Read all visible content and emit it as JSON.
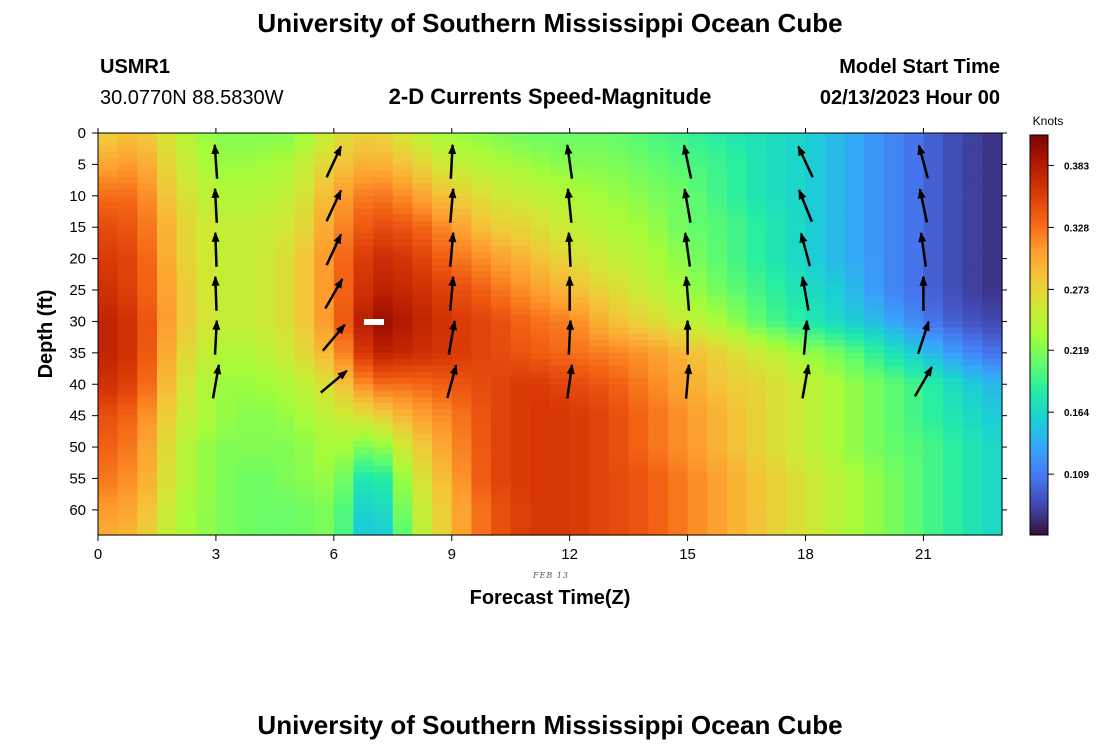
{
  "header": {
    "title": "University of Southern Mississippi Ocean Cube",
    "station": "USMR1",
    "coords": "30.0770N  88.5830W",
    "subtitle": "2-D Currents Speed-Magnitude",
    "model_start_label": "Model Start Time",
    "model_start_value": "02/13/2023 Hour 00"
  },
  "footer": {
    "title": "University of Southern Mississippi Ocean Cube"
  },
  "chart_data": {
    "type": "heatmap",
    "xlabel": "Forecast Time(Z)",
    "ylabel": "Depth (ft)",
    "date_label": "FEB 13",
    "xlim": [
      0,
      23
    ],
    "ylim": [
      0,
      64
    ],
    "y_inverted": true,
    "x_ticks": [
      0,
      3,
      6,
      9,
      12,
      15,
      18,
      21
    ],
    "y_ticks": [
      0,
      5,
      10,
      15,
      20,
      25,
      30,
      35,
      40,
      45,
      50,
      55,
      60
    ],
    "colorbar": {
      "label": "Knots",
      "ticks": [
        "0.109",
        "0.164",
        "0.219",
        "0.273",
        "0.328",
        "0.383"
      ],
      "tick_values": [
        0.109,
        0.164,
        0.219,
        0.273,
        0.328,
        0.383
      ],
      "range": [
        0.055,
        0.41
      ],
      "colors": [
        "#30123b",
        "#4145ab",
        "#4675ed",
        "#39a2fc",
        "#1bcfd4",
        "#24eca6",
        "#61fc6c",
        "#a4fc3b",
        "#d1e834",
        "#f3c63a",
        "#fe9b2d",
        "#f36315",
        "#d93806",
        "#b11901",
        "#7a0403"
      ]
    },
    "speed_grid": {
      "times": [
        0,
        1,
        2,
        3,
        4,
        5,
        6,
        7,
        8,
        9,
        10,
        11,
        12,
        13,
        14,
        15,
        16,
        17,
        18,
        19,
        20,
        21,
        22,
        23
      ],
      "depths": [
        0,
        5,
        10,
        15,
        20,
        25,
        30,
        35,
        40,
        45,
        50,
        55,
        60,
        64
      ],
      "values": [
        [
          0.27,
          0.29,
          0.25,
          0.22,
          0.22,
          0.22,
          0.26,
          0.28,
          0.25,
          0.23,
          0.22,
          0.21,
          0.21,
          0.21,
          0.2,
          0.19,
          0.18,
          0.17,
          0.16,
          0.14,
          0.12,
          0.1,
          0.08,
          0.07
        ],
        [
          0.3,
          0.31,
          0.26,
          0.23,
          0.23,
          0.24,
          0.28,
          0.3,
          0.28,
          0.25,
          0.24,
          0.23,
          0.22,
          0.22,
          0.21,
          0.2,
          0.19,
          0.17,
          0.16,
          0.14,
          0.12,
          0.1,
          0.08,
          0.07
        ],
        [
          0.33,
          0.33,
          0.27,
          0.24,
          0.24,
          0.25,
          0.3,
          0.33,
          0.31,
          0.28,
          0.26,
          0.25,
          0.24,
          0.23,
          0.22,
          0.21,
          0.19,
          0.17,
          0.16,
          0.14,
          0.12,
          0.1,
          0.08,
          0.07
        ],
        [
          0.35,
          0.34,
          0.28,
          0.25,
          0.25,
          0.26,
          0.31,
          0.35,
          0.34,
          0.31,
          0.28,
          0.27,
          0.25,
          0.24,
          0.23,
          0.21,
          0.2,
          0.18,
          0.16,
          0.14,
          0.12,
          0.1,
          0.08,
          0.07
        ],
        [
          0.36,
          0.35,
          0.28,
          0.25,
          0.25,
          0.27,
          0.32,
          0.37,
          0.36,
          0.33,
          0.31,
          0.29,
          0.27,
          0.25,
          0.24,
          0.22,
          0.2,
          0.18,
          0.16,
          0.14,
          0.12,
          0.1,
          0.08,
          0.07
        ],
        [
          0.37,
          0.35,
          0.29,
          0.25,
          0.25,
          0.27,
          0.32,
          0.38,
          0.37,
          0.35,
          0.33,
          0.31,
          0.29,
          0.27,
          0.25,
          0.23,
          0.21,
          0.19,
          0.17,
          0.15,
          0.12,
          0.1,
          0.08,
          0.07
        ],
        [
          0.38,
          0.36,
          0.29,
          0.25,
          0.25,
          0.27,
          0.32,
          0.4,
          0.38,
          0.36,
          0.35,
          0.33,
          0.32,
          0.29,
          0.27,
          0.25,
          0.23,
          0.2,
          0.18,
          0.16,
          0.14,
          0.11,
          0.09,
          0.08
        ],
        [
          0.38,
          0.36,
          0.28,
          0.24,
          0.24,
          0.26,
          0.3,
          0.38,
          0.37,
          0.36,
          0.35,
          0.34,
          0.33,
          0.32,
          0.31,
          0.29,
          0.27,
          0.25,
          0.23,
          0.21,
          0.18,
          0.15,
          0.12,
          0.1
        ],
        [
          0.37,
          0.35,
          0.27,
          0.23,
          0.23,
          0.24,
          0.27,
          0.33,
          0.33,
          0.34,
          0.35,
          0.36,
          0.35,
          0.34,
          0.32,
          0.3,
          0.28,
          0.27,
          0.25,
          0.23,
          0.21,
          0.19,
          0.16,
          0.14
        ],
        [
          0.35,
          0.33,
          0.26,
          0.23,
          0.22,
          0.23,
          0.25,
          0.27,
          0.3,
          0.32,
          0.35,
          0.36,
          0.36,
          0.35,
          0.33,
          0.31,
          0.29,
          0.27,
          0.25,
          0.23,
          0.21,
          0.19,
          0.17,
          0.15
        ],
        [
          0.34,
          0.32,
          0.25,
          0.22,
          0.22,
          0.22,
          0.24,
          0.21,
          0.27,
          0.31,
          0.35,
          0.36,
          0.36,
          0.35,
          0.33,
          0.31,
          0.29,
          0.27,
          0.25,
          0.23,
          0.21,
          0.2,
          0.18,
          0.16
        ],
        [
          0.33,
          0.31,
          0.25,
          0.22,
          0.21,
          0.22,
          0.23,
          0.16,
          0.25,
          0.3,
          0.35,
          0.36,
          0.36,
          0.35,
          0.34,
          0.32,
          0.3,
          0.28,
          0.26,
          0.24,
          0.22,
          0.2,
          0.18,
          0.16
        ],
        [
          0.31,
          0.3,
          0.24,
          0.22,
          0.21,
          0.21,
          0.22,
          0.14,
          0.24,
          0.29,
          0.34,
          0.36,
          0.36,
          0.35,
          0.34,
          0.32,
          0.3,
          0.28,
          0.26,
          0.24,
          0.22,
          0.2,
          0.18,
          0.16
        ],
        [
          0.3,
          0.29,
          0.24,
          0.22,
          0.21,
          0.21,
          0.22,
          0.13,
          0.23,
          0.29,
          0.34,
          0.36,
          0.36,
          0.35,
          0.34,
          0.32,
          0.3,
          0.28,
          0.26,
          0.24,
          0.22,
          0.2,
          0.18,
          0.16
        ]
      ]
    },
    "vectors": [
      {
        "time": 3,
        "depths": [
          3,
          10,
          17,
          24,
          31,
          38
        ],
        "angles_deg": [
          -4,
          -3,
          -2,
          -2,
          3,
          10
        ]
      },
      {
        "time": 6,
        "depths": [
          3,
          10,
          17,
          24,
          31,
          38
        ],
        "angles_deg": [
          25,
          25,
          25,
          30,
          40,
          50
        ]
      },
      {
        "time": 9,
        "depths": [
          3,
          10,
          17,
          24,
          31,
          38
        ],
        "angles_deg": [
          3,
          5,
          5,
          5,
          10,
          15
        ]
      },
      {
        "time": 12,
        "depths": [
          3,
          10,
          17,
          24,
          31,
          38
        ],
        "angles_deg": [
          -8,
          -6,
          -3,
          0,
          3,
          8
        ]
      },
      {
        "time": 15,
        "depths": [
          3,
          10,
          17,
          24,
          31,
          38
        ],
        "angles_deg": [
          -12,
          -10,
          -8,
          -5,
          0,
          5
        ]
      },
      {
        "time": 18,
        "depths": [
          3,
          10,
          17,
          24,
          31,
          38
        ],
        "angles_deg": [
          -25,
          -22,
          -15,
          -10,
          5,
          10
        ]
      },
      {
        "time": 21,
        "depths": [
          3,
          10,
          17,
          24,
          31,
          38
        ],
        "angles_deg": [
          -15,
          -12,
          -8,
          0,
          18,
          30
        ]
      }
    ]
  }
}
